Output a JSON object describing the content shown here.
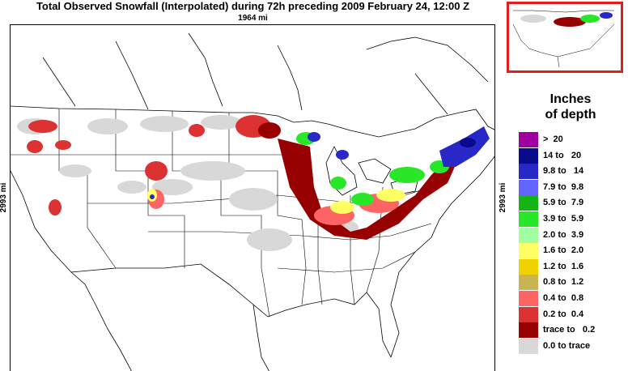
{
  "title": "Total Observed Snowfall (Interpolated) during 72h preceding 2009 February 24, 12:00 Z",
  "distance_horizontal": "1964 mi",
  "distance_vertical": "2993 mi",
  "legend": {
    "title_line1": "Inches",
    "title_line2": "of depth",
    "items": [
      {
        "label": ">  20",
        "color": "#a000a0"
      },
      {
        "label": "14 to   20",
        "color": "#0a0a8c"
      },
      {
        "label": "9.8 to   14",
        "color": "#2828c8"
      },
      {
        "label": "7.9 to  9.8",
        "color": "#6464ff"
      },
      {
        "label": "5.9 to  7.9",
        "color": "#14b414"
      },
      {
        "label": "3.9 to  5.9",
        "color": "#28e628"
      },
      {
        "label": "2.0 to  3.9",
        "color": "#a0ffa0"
      },
      {
        "label": "1.6 to  2.0",
        "color": "#ffff64"
      },
      {
        "label": "1.2 to  1.6",
        "color": "#f0d200"
      },
      {
        "label": "0.8 to  1.2",
        "color": "#c8b450"
      },
      {
        "label": "0.4 to  0.8",
        "color": "#ff6464"
      },
      {
        "label": "0.2 to  0.4",
        "color": "#dc3232"
      },
      {
        "label": "trace to   0.2",
        "color": "#960000"
      },
      {
        "label": "0.0 to trace",
        "color": "#d8d8d8"
      }
    ]
  }
}
